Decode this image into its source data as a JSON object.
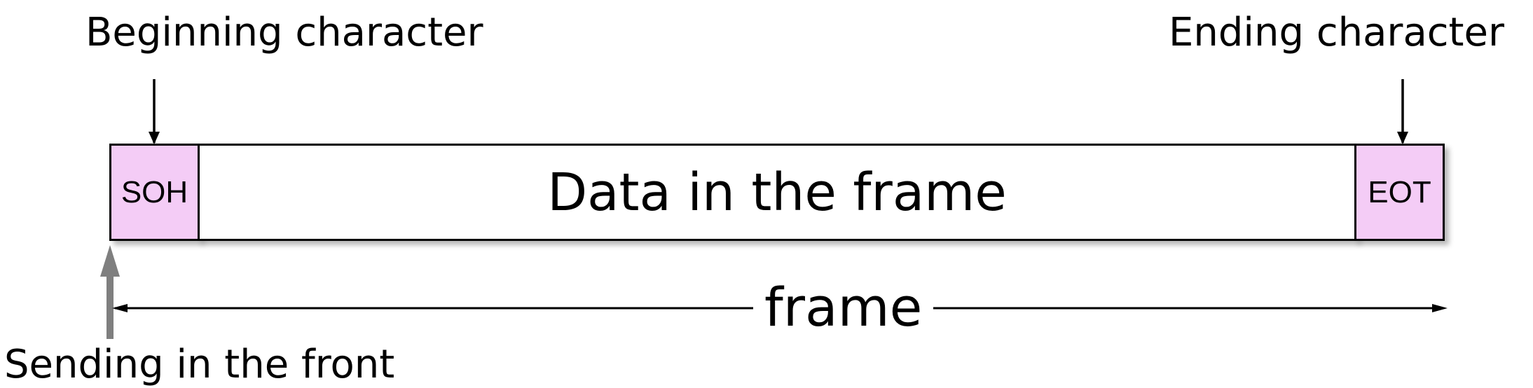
{
  "colors": {
    "marker_fill": "#f4ccf6",
    "data_fill": "#ffffff",
    "stroke": "#000000",
    "send_arrow": "#7f7f7f"
  },
  "labels": {
    "beginning": "Beginning character",
    "ending": "Ending character",
    "sending": "Sending in the front",
    "frame": "frame"
  },
  "boxes": {
    "start": "SOH",
    "data": "Data in the frame",
    "end": "EOT"
  }
}
